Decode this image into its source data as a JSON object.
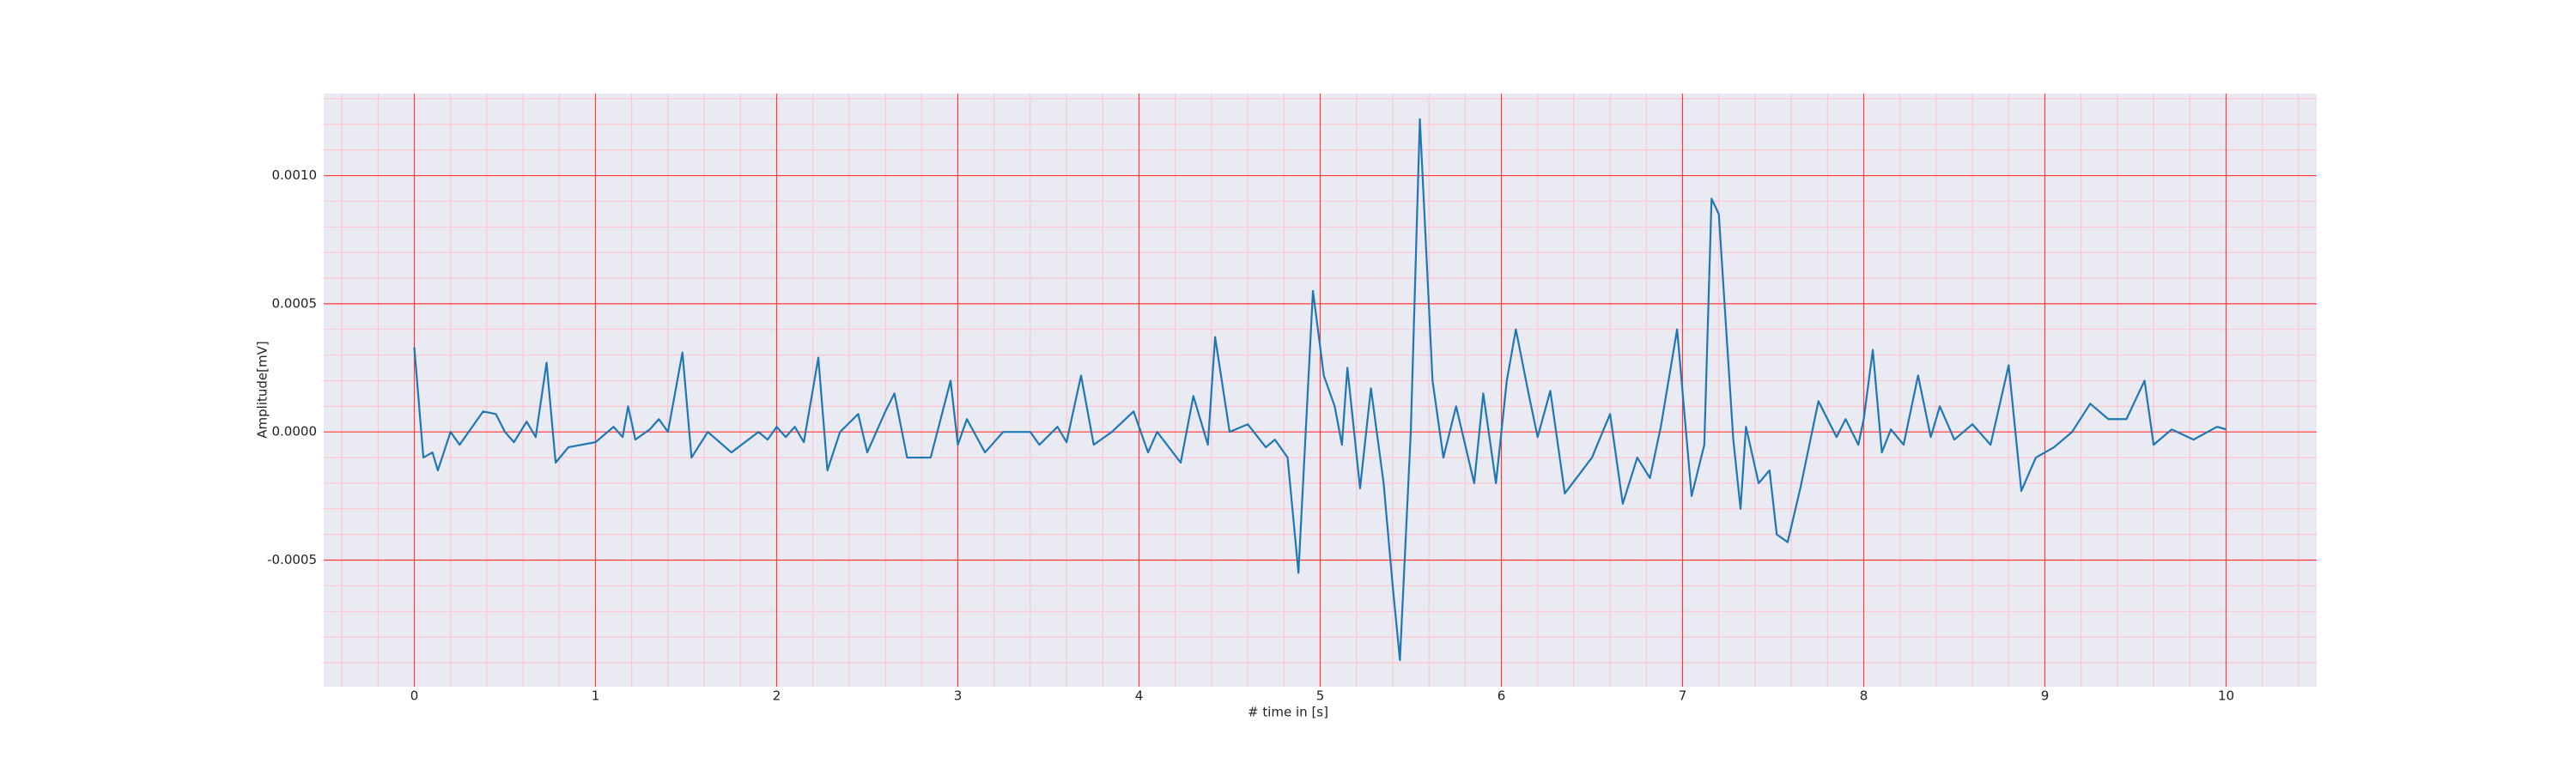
{
  "chart_data": {
    "type": "line",
    "xlabel": "# time in [s]",
    "ylabel": "Amplitude[mV]",
    "x": [
      0,
      0.05,
      0.1,
      0.13,
      0.2,
      0.25,
      0.3,
      0.38,
      0.45,
      0.5,
      0.55,
      0.62,
      0.67,
      0.73,
      0.78,
      0.85,
      1.0,
      1.1,
      1.15,
      1.18,
      1.22,
      1.3,
      1.35,
      1.4,
      1.48,
      1.53,
      1.62,
      1.75,
      1.9,
      1.95,
      2.0,
      2.05,
      2.1,
      2.15,
      2.23,
      2.28,
      2.35,
      2.45,
      2.5,
      2.6,
      2.65,
      2.72,
      2.85,
      2.96,
      3.0,
      3.05,
      3.15,
      3.25,
      3.4,
      3.45,
      3.55,
      3.6,
      3.68,
      3.75,
      3.85,
      3.97,
      4.05,
      4.1,
      4.23,
      4.3,
      4.38,
      4.42,
      4.5,
      4.6,
      4.7,
      4.75,
      4.82,
      4.88,
      4.96,
      5.02,
      5.08,
      5.12,
      5.15,
      5.22,
      5.28,
      5.35,
      5.4,
      5.44,
      5.5,
      5.55,
      5.62,
      5.68,
      5.75,
      5.85,
      5.9,
      5.97,
      6.03,
      6.08,
      6.15,
      6.2,
      6.27,
      6.35,
      6.5,
      6.6,
      6.67,
      6.75,
      6.82,
      6.88,
      6.97,
      7.05,
      7.12,
      7.16,
      7.2,
      7.28,
      7.32,
      7.35,
      7.42,
      7.48,
      7.52,
      7.58,
      7.65,
      7.75,
      7.85,
      7.9,
      7.97,
      8.0,
      8.05,
      8.1,
      8.15,
      8.22,
      8.3,
      8.37,
      8.42,
      8.5,
      8.6,
      8.7,
      8.8,
      8.87,
      8.95,
      9.05,
      9.15,
      9.25,
      9.35,
      9.45,
      9.55,
      9.6,
      9.7,
      9.82,
      9.95,
      10.0
    ],
    "series": [
      {
        "color": "#1f77b4",
        "values": [
          0.00033,
          -0.0001,
          -8e-05,
          -0.00015,
          0.0,
          -5e-05,
          0.0,
          8e-05,
          7e-05,
          0.0,
          -4e-05,
          4e-05,
          -2e-05,
          0.00027,
          -0.00012,
          -6e-05,
          -4e-05,
          2e-05,
          -2e-05,
          0.0001,
          -3e-05,
          1e-05,
          5e-05,
          0.0,
          0.00031,
          -0.0001,
          0.0,
          -8e-05,
          0.0,
          -3e-05,
          2e-05,
          -2e-05,
          2e-05,
          -4e-05,
          0.00029,
          -0.00015,
          0.0,
          7e-05,
          -8e-05,
          8e-05,
          0.00015,
          -0.0001,
          -0.0001,
          0.0002,
          -5e-05,
          5e-05,
          -8e-05,
          0.0,
          0.0,
          -5e-05,
          2e-05,
          -4e-05,
          0.00022,
          -5e-05,
          0.0,
          8e-05,
          -8e-05,
          0.0,
          -0.00012,
          0.00014,
          -5e-05,
          0.00037,
          0.0,
          3e-05,
          -6e-05,
          -3e-05,
          -0.0001,
          -0.00055,
          0.00055,
          0.00022,
          0.0001,
          -5e-05,
          0.00025,
          -0.00022,
          0.00017,
          -0.0002,
          -0.0006,
          -0.00089,
          0.0,
          0.00122,
          0.0002,
          -0.0001,
          0.0001,
          -0.0002,
          0.00015,
          -0.0002,
          0.0002,
          0.0004,
          0.00015,
          -2e-05,
          0.00016,
          -0.00024,
          -0.0001,
          7e-05,
          -0.00028,
          -0.0001,
          -0.00018,
          2e-05,
          0.0004,
          -0.00025,
          -5e-05,
          0.00091,
          0.00085,
          -3e-05,
          -0.0003,
          2e-05,
          -0.0002,
          -0.00015,
          -0.0004,
          -0.00043,
          -0.00022,
          0.00012,
          -2e-05,
          5e-05,
          -5e-05,
          5e-05,
          0.00032,
          -8e-05,
          1e-05,
          -5e-05,
          0.00022,
          -2e-05,
          0.0001,
          -3e-05,
          3e-05,
          -5e-05,
          0.00026,
          -0.00023,
          -0.0001,
          -6e-05,
          0.0,
          0.00011,
          5e-05,
          5e-05,
          0.0002,
          -5e-05,
          1e-05,
          -3e-05,
          2e-05,
          1e-05
        ]
      }
    ],
    "xlim": [
      -0.5,
      10.5
    ],
    "xticks": [
      0,
      1,
      2,
      3,
      4,
      5,
      6,
      7,
      8,
      9,
      10
    ],
    "ylim": [
      -0.000994,
      0.00132
    ],
    "yticks": [
      {
        "value": -0.0005,
        "label": "-0.0005"
      },
      {
        "value": 0,
        "label": "0.0000"
      },
      {
        "value": 0.0005,
        "label": "0.0005"
      },
      {
        "value": 0.001,
        "label": "0.0010"
      }
    ],
    "grid": true,
    "grid_color": "#ff3b3b",
    "minor_grid": true,
    "minor_grid_color": "#ffc0cb"
  }
}
